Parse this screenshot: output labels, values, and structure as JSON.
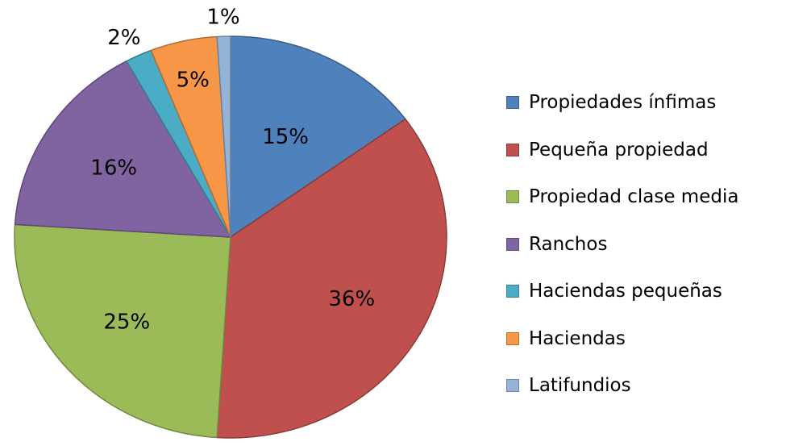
{
  "chart_data": {
    "type": "pie",
    "title": "",
    "start": "12 o'clock, clockwise",
    "legend_position": "right",
    "slices": [
      {
        "label": "Propiedades ínfimas",
        "value": 15,
        "display": "15%",
        "color": "#4F81BD"
      },
      {
        "label": "Pequeña propiedad",
        "value": 36,
        "display": "36%",
        "color": "#C0504D"
      },
      {
        "label": "Propiedad clase media",
        "value": 25,
        "display": "25%",
        "color": "#9BBB59"
      },
      {
        "label": "Ranchos",
        "value": 16,
        "display": "16%",
        "color": "#8064A2"
      },
      {
        "label": "Haciendas pequeñas",
        "value": 2,
        "display": "2%",
        "color": "#4BACC6"
      },
      {
        "label": "Haciendas",
        "value": 5,
        "display": "5%",
        "color": "#F79646"
      },
      {
        "label": "Latifundios",
        "value": 1,
        "display": "1%",
        "color": "#95B3D7"
      }
    ]
  }
}
